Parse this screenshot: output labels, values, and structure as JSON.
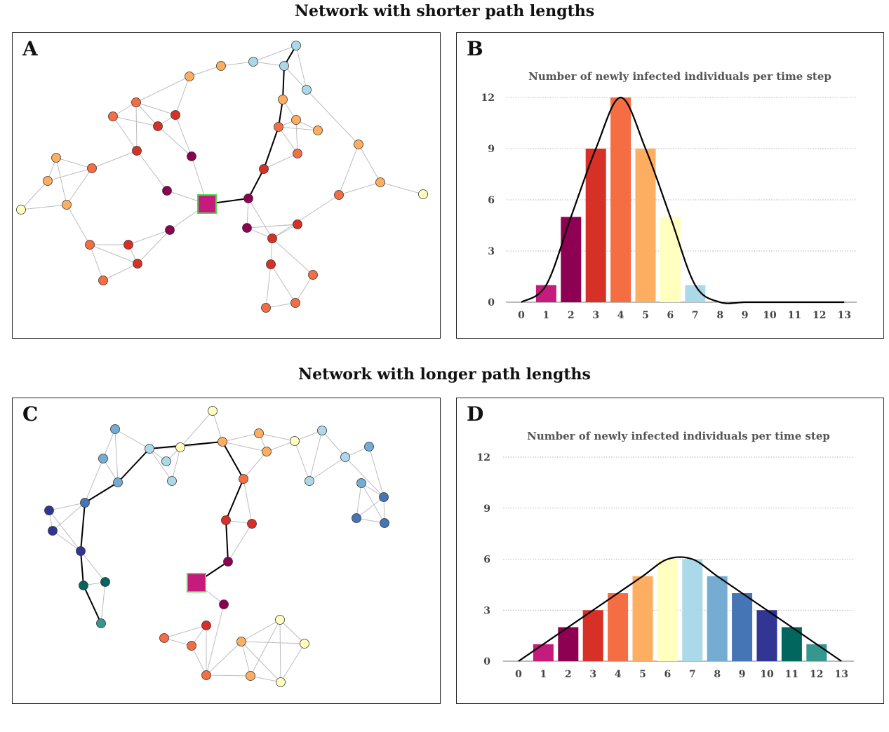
{
  "titles": {
    "top": "Network with shorter path lengths",
    "bottom": "Network with longer path lengths"
  },
  "panels": {
    "a": "A",
    "b": "B",
    "c": "C",
    "d": "D"
  },
  "colors": {
    "edge": "#bdbdbd",
    "path": "#000000",
    "source_fill": "#c51b7d",
    "source_border": "#4dd94d",
    "node_stroke": "#333333",
    "grid": "#9e9e9e",
    "step_colors": [
      "#ffffff",
      "#c51b7d",
      "#8e0152",
      "#d73027",
      "#f46d43",
      "#fdae61",
      "#ffffbf",
      "#abd9e9",
      "#74add1",
      "#4575b4",
      "#313695",
      "#01665e",
      "#35978f"
    ]
  },
  "chart_data": [
    {
      "panel": "B",
      "type": "bar",
      "title": "Number of newly infected individuals per time step",
      "xlabel": "",
      "ylabel": "",
      "categories": [
        "0",
        "1",
        "2",
        "3",
        "4",
        "5",
        "6",
        "7",
        "8",
        "9",
        "10",
        "11",
        "12",
        "13"
      ],
      "values": [
        0,
        1,
        5,
        9,
        12,
        9,
        5,
        1,
        0,
        0,
        0,
        0,
        0,
        0
      ],
      "yticks": [
        0,
        3,
        6,
        9,
        12
      ],
      "ylim": [
        0,
        12
      ],
      "grid": true,
      "curve": "smooth"
    },
    {
      "panel": "D",
      "type": "bar",
      "title": "Number of newly infected individuals per time step",
      "xlabel": "",
      "ylabel": "",
      "categories": [
        "0",
        "1",
        "2",
        "3",
        "4",
        "5",
        "6",
        "7",
        "8",
        "9",
        "10",
        "11",
        "12",
        "13"
      ],
      "values": [
        0,
        1,
        2,
        3,
        4,
        5,
        6,
        6,
        5,
        4,
        3,
        2,
        1,
        0
      ],
      "yticks": [
        0,
        3,
        6,
        9,
        12
      ],
      "ylim": [
        0,
        12
      ],
      "grid": true,
      "curve": "smooth"
    }
  ]
}
